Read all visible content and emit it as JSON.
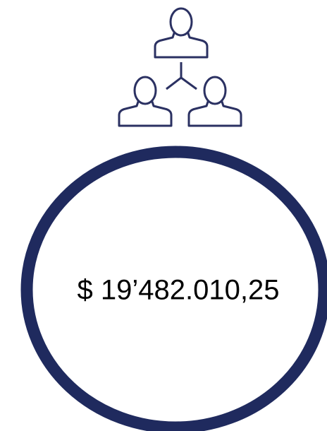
{
  "amount": "$ 19’482.010,25"
}
